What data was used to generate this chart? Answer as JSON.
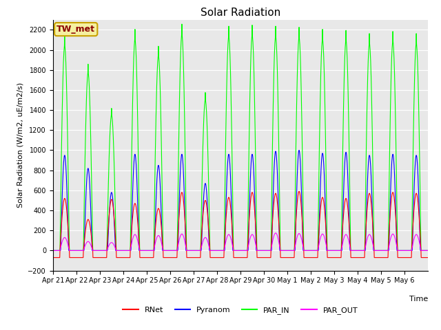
{
  "title": "Solar Radiation",
  "ylabel": "Solar Radiation (W/m2, uE/m2/s)",
  "xlabel": "Time",
  "station_label": "TW_met",
  "ylim": [
    -200,
    2300
  ],
  "yticks": [
    -200,
    0,
    200,
    400,
    600,
    800,
    1000,
    1200,
    1400,
    1600,
    1800,
    2000,
    2200
  ],
  "series_colors": {
    "RNet": "#ff0000",
    "Pyranom": "#0000ff",
    "PAR_IN": "#00ff00",
    "PAR_OUT": "#ff00ff"
  },
  "bg_color": "#e8e8e8",
  "fig_bg": "#ffffff",
  "linewidth": 0.8,
  "xtick_labels": [
    "Apr 21",
    "Apr 22",
    "Apr 23",
    "Apr 24",
    "Apr 25",
    "Apr 26",
    "Apr 27",
    "Apr 28",
    "Apr 29",
    "Apr 30",
    "May 1",
    "May 2",
    "May 3",
    "May 4",
    "May 5",
    "May 6"
  ],
  "n_days": 16,
  "points_per_day": 96,
  "title_fontsize": 11,
  "label_fontsize": 8,
  "tick_fontsize": 7,
  "legend_fontsize": 8
}
